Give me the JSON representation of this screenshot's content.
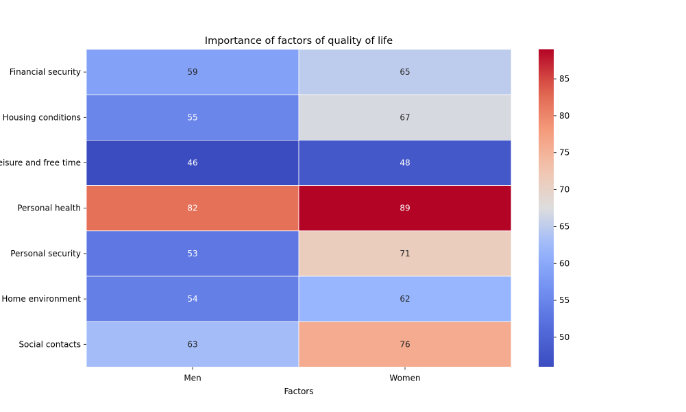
{
  "chart_data": {
    "type": "heatmap",
    "title": "Importance of factors of quality of life",
    "xlabel": "Factors",
    "ylabel": "",
    "columns": [
      "Men",
      "Women"
    ],
    "rows": [
      "Financial security",
      "Housing conditions",
      "Leisure and free time",
      "Personal health",
      "Personal security",
      "Home environment",
      "Social contacts"
    ],
    "values": [
      [
        59,
        65
      ],
      [
        55,
        67
      ],
      [
        46,
        48
      ],
      [
        82,
        89
      ],
      [
        53,
        71
      ],
      [
        54,
        62
      ],
      [
        63,
        76
      ]
    ],
    "colormap": "coolwarm",
    "value_range": [
      46,
      89
    ],
    "colorbar_ticks": [
      50,
      55,
      60,
      65,
      70,
      75,
      80,
      85
    ],
    "colorbar_tick_labels": [
      "50",
      "55",
      "60",
      "65",
      "70",
      "75",
      "80",
      "85"
    ],
    "low_color": "#3b4cc0",
    "mid_color": "#dddddd",
    "high_color": "#b40426"
  }
}
